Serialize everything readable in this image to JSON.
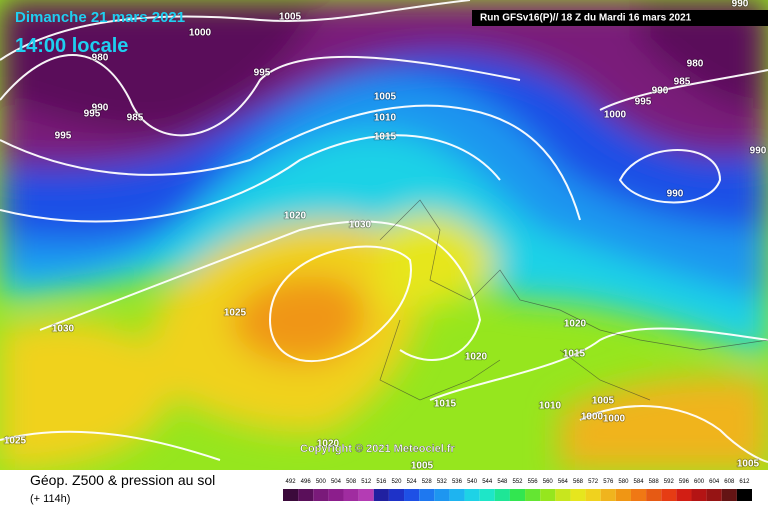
{
  "header": {
    "date": "Dimanche 21 mars 2021",
    "time": "14:00 locale",
    "run": "Run GFSv16(P)// 18 Z du Mardi 16 mars 2021"
  },
  "isobar_labels": [
    1005,
    1000,
    990,
    980,
    995,
    980,
    985,
    990,
    995,
    1000,
    990,
    995,
    985,
    995,
    1005,
    1010,
    1015,
    990,
    990,
    1020,
    1030,
    1025,
    1030,
    1020,
    1015,
    1020,
    1015,
    1010,
    1005,
    1000,
    1000,
    1025,
    1020,
    1005,
    1005
  ],
  "copyright": "Copyright © 2021 Meteociel.fr",
  "footer": {
    "title": "Géop. Z500 & pression au sol",
    "subtitle": "(+ 114h)"
  },
  "legend": {
    "ticks": [
      492,
      496,
      500,
      504,
      508,
      512,
      516,
      520,
      524,
      528,
      532,
      536,
      540,
      544,
      548,
      552,
      556,
      560,
      564,
      568,
      572,
      576,
      580,
      584,
      588,
      592,
      596,
      600,
      604,
      608,
      612
    ],
    "colors": [
      "#3b0a3b",
      "#5a0f5a",
      "#7a1a7a",
      "#8c1e8c",
      "#a02ca0",
      "#b43cb4",
      "#2020a0",
      "#1e32c8",
      "#1e50e6",
      "#1e78f0",
      "#1e96f0",
      "#1eb4f0",
      "#1ed2e6",
      "#1ee6c8",
      "#1ee696",
      "#32e650",
      "#64e632",
      "#96e61e",
      "#c8e61e",
      "#e6e61e",
      "#f0d21e",
      "#f0b41e",
      "#f09614",
      "#f07814",
      "#e65a14",
      "#e63c14",
      "#d21e14",
      "#b41414",
      "#961414",
      "#641414",
      "#000000"
    ]
  }
}
